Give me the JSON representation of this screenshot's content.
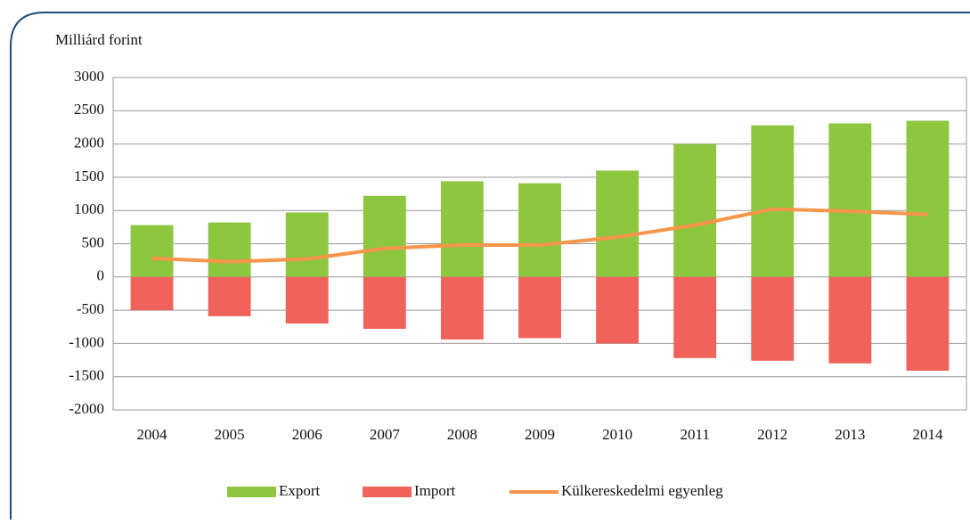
{
  "chart_data": {
    "type": "bar_line",
    "y_axis_label": "Milliárd forint",
    "categories": [
      "2004",
      "2005",
      "2006",
      "2007",
      "2008",
      "2009",
      "2010",
      "2011",
      "2012",
      "2013",
      "2014"
    ],
    "series": [
      {
        "name": "Export",
        "color": "#8dc63f",
        "type": "bar",
        "values": [
          780,
          820,
          970,
          1220,
          1440,
          1410,
          1600,
          2000,
          2280,
          2310,
          2350
        ]
      },
      {
        "name": "Import",
        "color": "#f0635a",
        "type": "bar",
        "values": [
          -500,
          -590,
          -700,
          -780,
          -940,
          -920,
          -1000,
          -1220,
          -1260,
          -1300,
          -1410
        ]
      },
      {
        "name": "Külkereskedelmi egyenleg",
        "color": "#f7964a",
        "type": "line",
        "values": [
          280,
          230,
          270,
          430,
          480,
          480,
          600,
          780,
          1020,
          990,
          940
        ]
      }
    ],
    "ylim": [
      -2000,
      3000
    ],
    "yticks": [
      -2000,
      -1500,
      -1000,
      -500,
      0,
      500,
      1000,
      1500,
      2000,
      2500,
      3000
    ],
    "grid": true,
    "legend": "bottom"
  }
}
